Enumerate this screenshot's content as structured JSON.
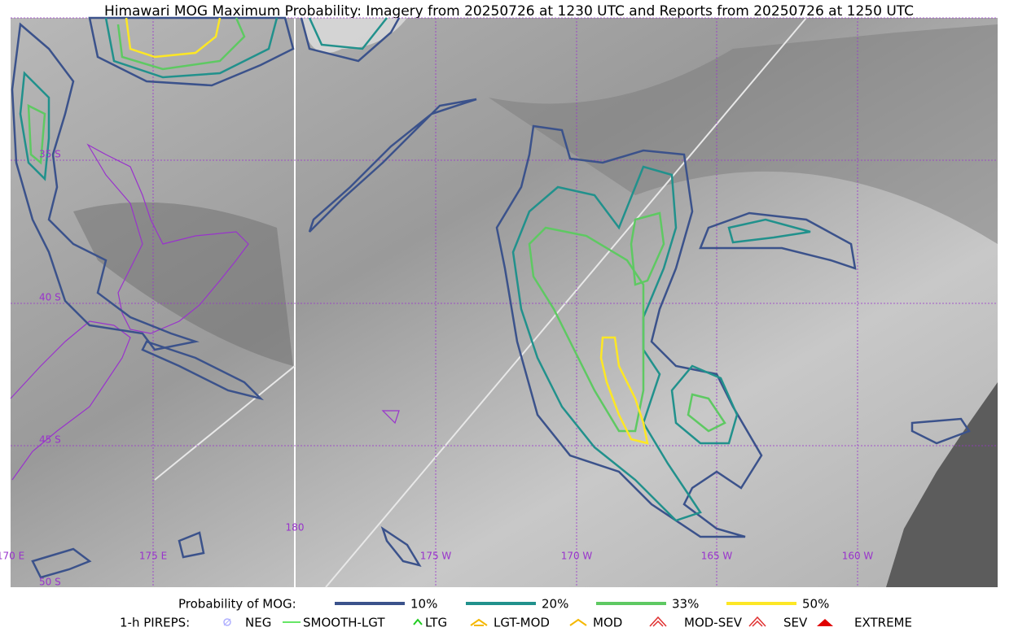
{
  "title": "Himawari MOG Maximum Probability: Imagery from 20250726 at 1230 UTC and Reports from 20250726 at 1250 UTC",
  "map": {
    "lat_labels": [
      "35 S",
      "40 S",
      "45 S",
      "50 S"
    ],
    "lon_labels": [
      "170 E",
      "175 E",
      "180",
      "175 W",
      "170 W",
      "165 W",
      "160 W"
    ]
  },
  "legend": {
    "probability": {
      "title": "Probability of MOG:",
      "items": [
        {
          "label": "10%",
          "color": "#3b528b"
        },
        {
          "label": "20%",
          "color": "#21918c"
        },
        {
          "label": "33%",
          "color": "#5ec962"
        },
        {
          "label": "50%",
          "color": "#fde725"
        }
      ]
    },
    "pireps": {
      "title": "1-h PIREPS:",
      "items": [
        {
          "label": "NEG",
          "color": "#b0b0ff"
        },
        {
          "label": "SMOOTH-LGT",
          "color": "#33dd33"
        },
        {
          "label": "LTG",
          "color": "#22cc22"
        },
        {
          "label": "LGT-MOD",
          "color": "#f5b800"
        },
        {
          "label": "MOD",
          "color": "#f5b800"
        },
        {
          "label": "MOD-SEV",
          "color": "#e03030"
        },
        {
          "label": "SEV",
          "color": "#e03030"
        },
        {
          "label": "EXTREME",
          "color": "#e00000"
        }
      ]
    }
  }
}
